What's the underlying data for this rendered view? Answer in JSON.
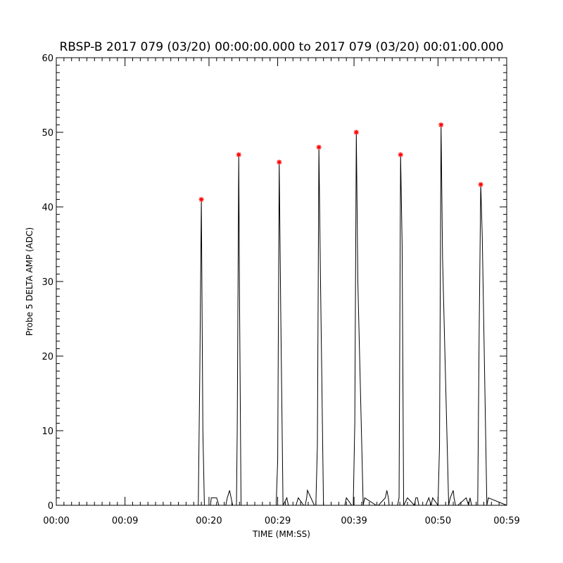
{
  "chart_data": {
    "type": "line",
    "title": "RBSP-B 2017 079 (03/20) 00:00:00.000 to 2017 079 (03/20) 00:01:00.000",
    "xlabel": "TIME (MM:SS)",
    "ylabel": "Probe 5 DELTA AMP (ADC)",
    "xlim": [
      0,
      59
    ],
    "ylim": [
      0,
      60
    ],
    "x_ticks": [
      0,
      9,
      20,
      29,
      39,
      50,
      59
    ],
    "x_tick_labels": [
      "00:00",
      "00:09",
      "00:20",
      "00:29",
      "00:39",
      "00:50",
      "00:59"
    ],
    "y_ticks": [
      0,
      10,
      20,
      30,
      40,
      50,
      60
    ],
    "y_tick_labels": [
      "0",
      "10",
      "20",
      "30",
      "40",
      "50",
      "60"
    ],
    "grid": false,
    "line_color": "#000000",
    "marker_color": "#ff0000",
    "series": [
      {
        "x": [
          0,
          18.6,
          18.8,
          19.0,
          19.2,
          19.4,
          20.2,
          20.3,
          20.6,
          21.0,
          21.3,
          22.2,
          22.4,
          22.7,
          23.1,
          23.6,
          23.7,
          23.9,
          24.0,
          24.2,
          24.5,
          26.4,
          28.8,
          29.0,
          29.2,
          29.4,
          29.7,
          30.2,
          30.4,
          31.4,
          31.7,
          32.4,
          32.6,
          32.8,
          32.9,
          33.8,
          34.0,
          34.2,
          34.4,
          34.6,
          35.0,
          37.8,
          38.0,
          38.7,
          38.9,
          39.1,
          39.3,
          39.5,
          40.2,
          40.4,
          41.9,
          42.2,
          43.1,
          43.3,
          43.5,
          43.6,
          44.7,
          44.9,
          45.1,
          45.3,
          45.5,
          46.0,
          46.9,
          47.1,
          47.3,
          47.5,
          48.4,
          48.8,
          49.1,
          49.3,
          50.0,
          50.2,
          50.4,
          50.6,
          51.4,
          51.6,
          52.0,
          52.1,
          52.3,
          52.6,
          53.7,
          54.0,
          54.2,
          54.4,
          55.2,
          55.4,
          55.6,
          55.8,
          56.4,
          56.6,
          59
        ],
        "y": [
          0,
          0,
          18,
          41,
          10,
          0,
          0,
          1,
          1,
          1,
          0,
          0,
          1,
          2,
          0,
          0,
          10,
          47,
          28,
          0,
          0,
          0,
          0,
          6,
          46,
          26,
          0,
          1,
          0,
          0,
          1,
          0,
          0,
          1,
          2,
          0,
          0,
          8,
          48,
          31,
          0,
          0,
          1,
          0,
          0,
          11,
          50,
          30,
          0,
          1,
          0,
          0,
          1,
          2,
          1,
          0,
          0,
          1,
          47,
          35,
          0,
          1,
          0,
          1,
          1,
          0,
          0,
          1,
          0,
          1,
          0,
          8,
          51,
          33,
          0,
          1,
          2,
          1,
          0,
          0,
          1,
          0,
          1,
          0,
          0,
          24,
          43,
          36,
          0,
          1,
          0
        ]
      }
    ],
    "peaks": [
      {
        "x": 19.0,
        "y": 41
      },
      {
        "x": 23.9,
        "y": 47
      },
      {
        "x": 29.2,
        "y": 46
      },
      {
        "x": 34.4,
        "y": 48
      },
      {
        "x": 39.3,
        "y": 50
      },
      {
        "x": 45.1,
        "y": 47
      },
      {
        "x": 50.4,
        "y": 51
      },
      {
        "x": 55.6,
        "y": 43
      }
    ]
  }
}
